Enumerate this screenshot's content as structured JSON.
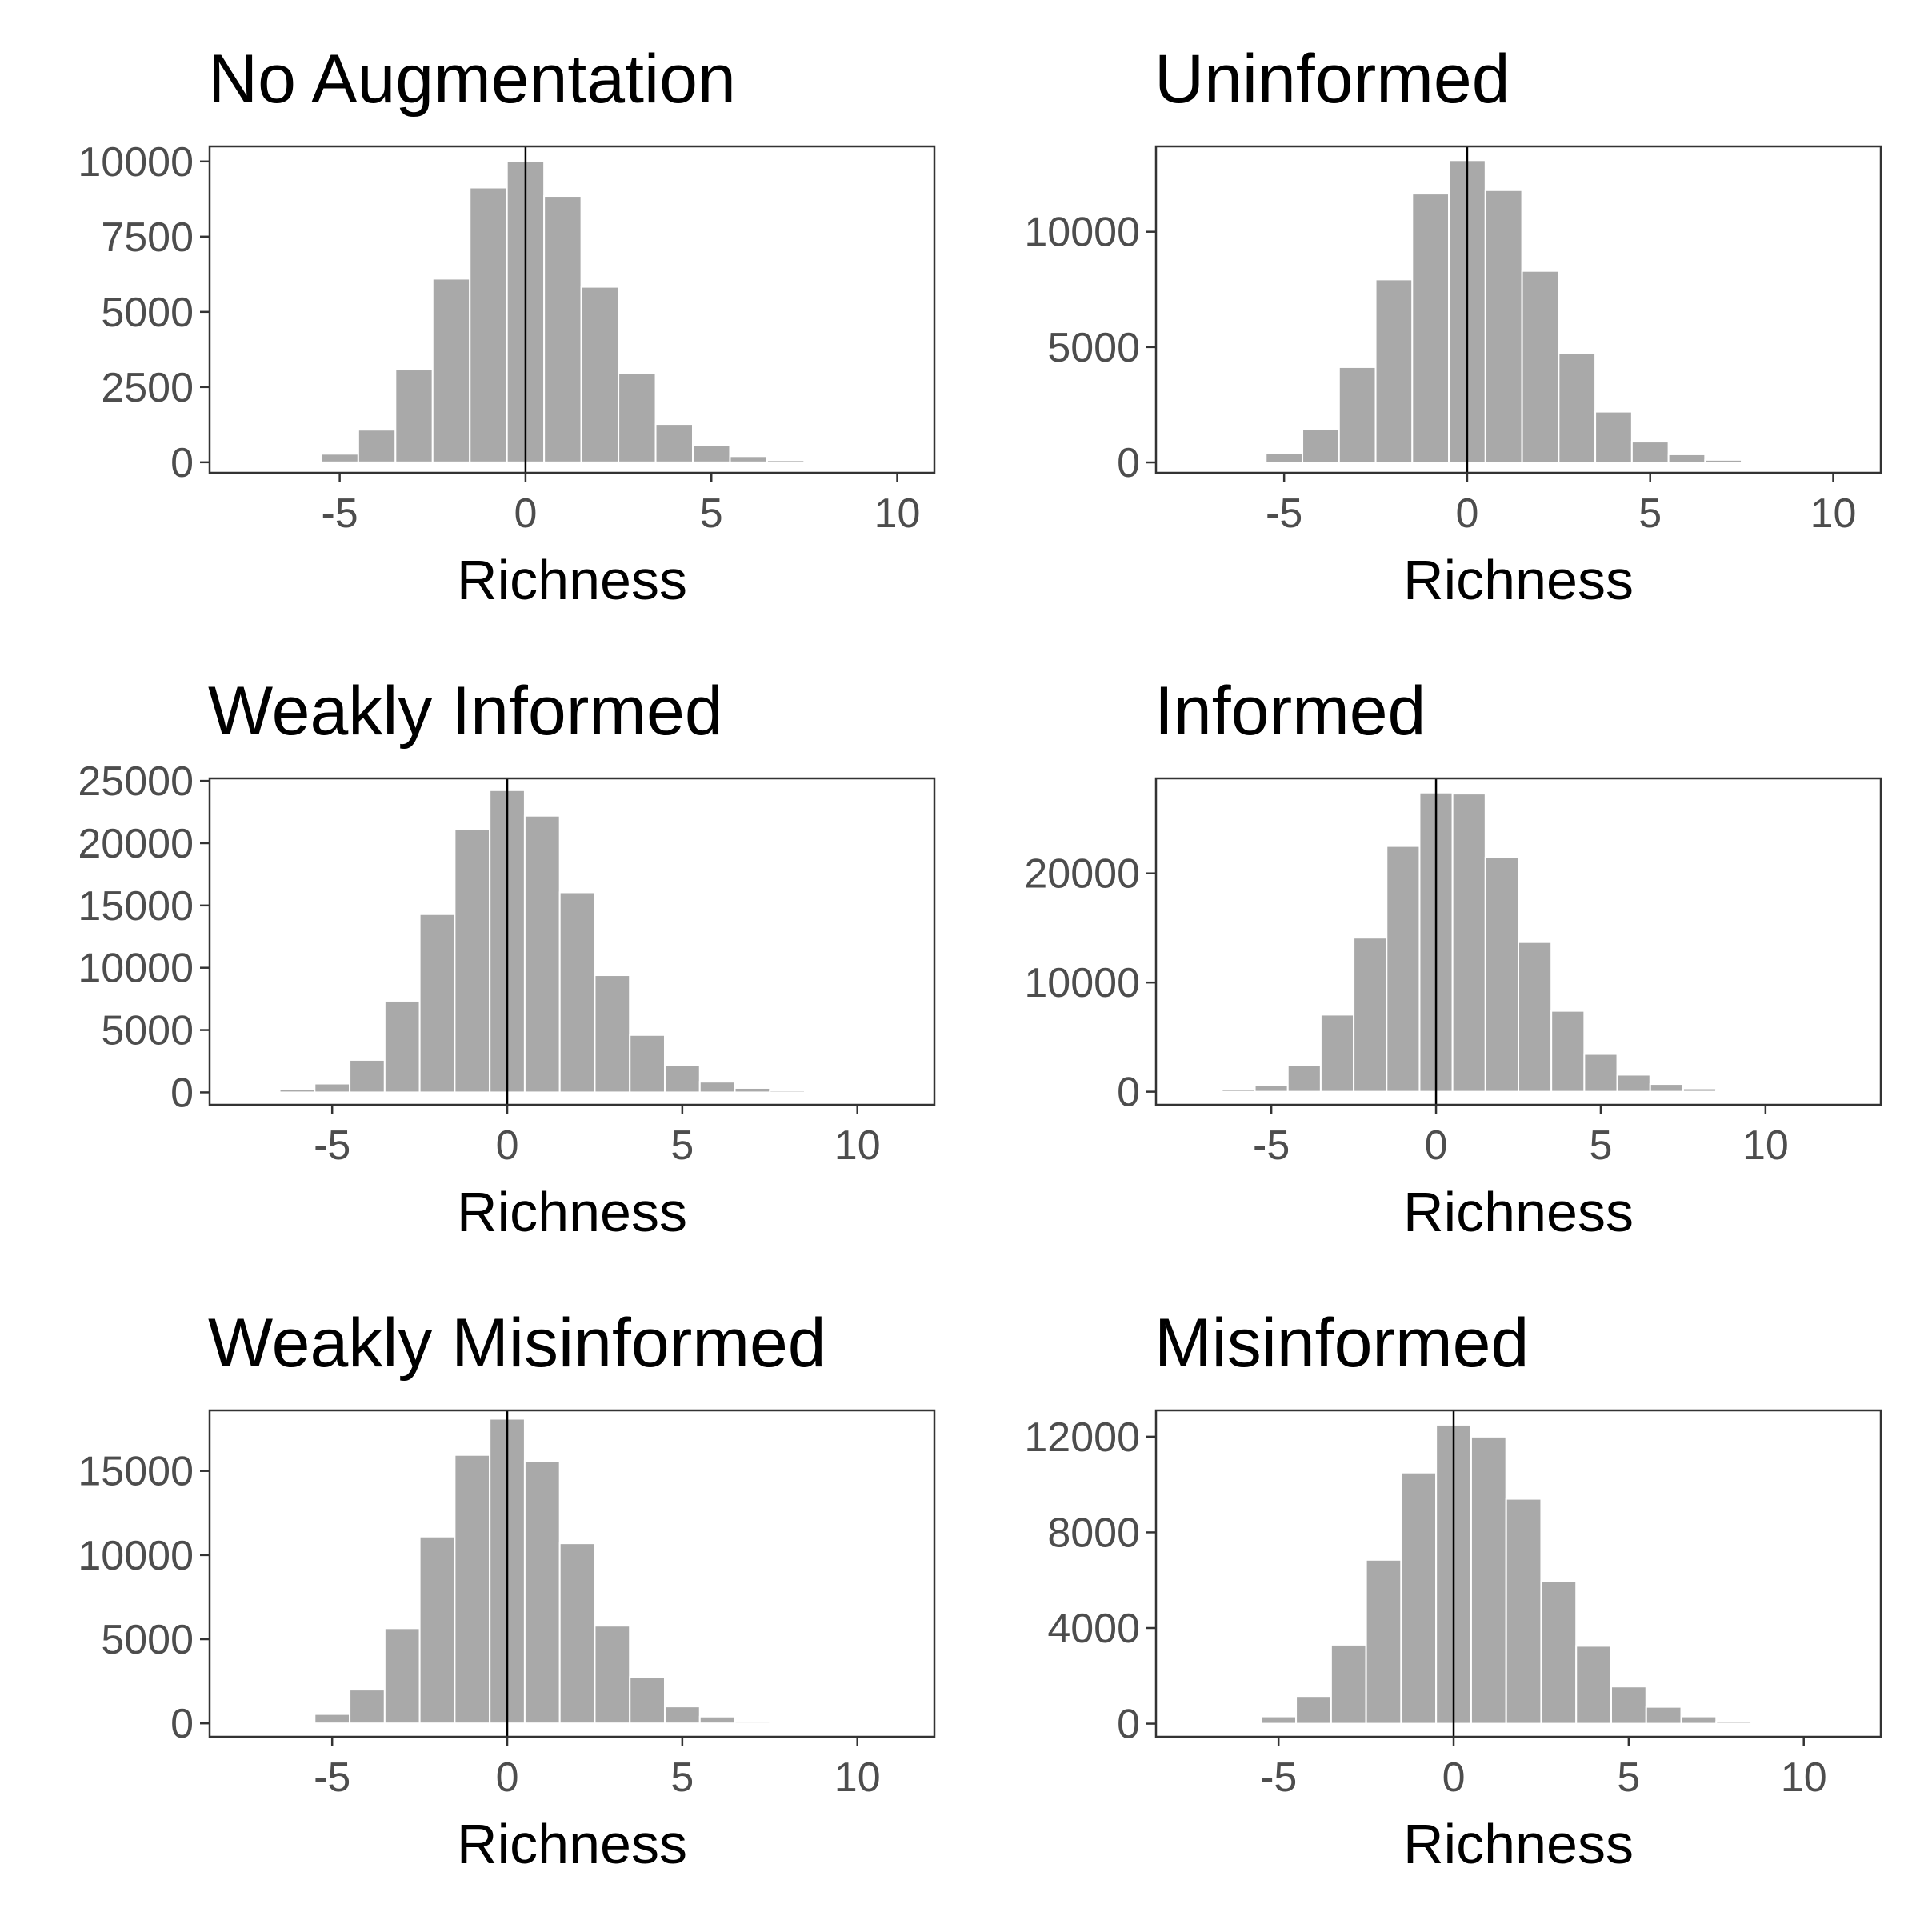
{
  "figure": {
    "background": "#ffffff",
    "bar_color": "#a9a9a9",
    "frame_color": "#333333",
    "zero_line_color": "#000000"
  },
  "chart_data": [
    {
      "type": "bar",
      "title": "No Augmentation",
      "xlabel": "Richness",
      "ylabel": "",
      "xlim": [
        -8.5,
        11
      ],
      "ylim": [
        -350,
        10500
      ],
      "xticks": [
        -5,
        0,
        5,
        10
      ],
      "yticks": [
        0,
        2500,
        5000,
        7500,
        10000
      ],
      "bin_width": 1,
      "grid": false,
      "zero_line": 0,
      "x": [
        -6,
        -5,
        -4,
        -3,
        -2,
        -1,
        0,
        1,
        2,
        3,
        4,
        5,
        6,
        7,
        8
      ],
      "values": [
        40,
        280,
        1080,
        3080,
        6100,
        9130,
        10000,
        8850,
        5830,
        2950,
        1270,
        560,
        200,
        70,
        20
      ]
    },
    {
      "type": "bar",
      "title": "Uninformed",
      "xlabel": "Richness",
      "ylabel": "",
      "xlim": [
        -8.5,
        11.3
      ],
      "ylim": [
        -450,
        13700
      ],
      "xticks": [
        -5,
        0,
        5,
        10
      ],
      "yticks": [
        0,
        5000,
        10000
      ],
      "bin_width": 1,
      "grid": false,
      "zero_line": 0,
      "x": [
        -6,
        -5,
        -4,
        -3,
        -2,
        -1,
        0,
        1,
        2,
        3,
        4,
        5,
        6,
        7,
        8
      ],
      "values": [
        60,
        400,
        1450,
        4130,
        7930,
        11650,
        13100,
        11800,
        8300,
        4750,
        2200,
        900,
        350,
        110,
        30
      ]
    },
    {
      "type": "bar",
      "title": "Weakly Informed",
      "xlabel": "Richness",
      "ylabel": "",
      "xlim": [
        -8.5,
        12.2
      ],
      "ylim": [
        -1000,
        25200
      ],
      "xticks": [
        -5,
        0,
        5,
        10
      ],
      "yticks": [
        0,
        5000,
        10000,
        15000,
        20000,
        25000
      ],
      "bin_width": 1,
      "grid": false,
      "zero_line": 0,
      "x": [
        -7,
        -6,
        -5,
        -4,
        -3,
        -2,
        -1,
        0,
        1,
        2,
        3,
        4,
        5,
        6,
        7,
        8,
        9,
        10
      ],
      "values": [
        60,
        230,
        700,
        2600,
        7350,
        14300,
        21150,
        24250,
        22200,
        16050,
        9400,
        4600,
        2150,
        850,
        350,
        150,
        60,
        20
      ]
    },
    {
      "type": "bar",
      "title": "Informed",
      "xlabel": "Richness",
      "ylabel": "",
      "xlim": [
        -8.5,
        13.5
      ],
      "ylim": [
        -1200,
        28700
      ],
      "xticks": [
        -5,
        0,
        5,
        10
      ],
      "yticks": [
        0,
        10000,
        20000
      ],
      "bin_width": 1,
      "grid": false,
      "zero_line": 0,
      "x": [
        -6,
        -5,
        -4,
        -3,
        -2,
        -1,
        0,
        1,
        2,
        3,
        4,
        5,
        6,
        7,
        8,
        9,
        10
      ],
      "values": [
        220,
        620,
        2400,
        7050,
        14100,
        22500,
        27400,
        27300,
        21450,
        13700,
        7400,
        3450,
        1550,
        700,
        300,
        120,
        50
      ]
    },
    {
      "type": "bar",
      "title": "Weakly Misinformed",
      "xlabel": "Richness",
      "ylabel": "",
      "xlim": [
        -8.5,
        12.2
      ],
      "ylim": [
        -800,
        18600
      ],
      "xticks": [
        -5,
        0,
        5,
        10
      ],
      "yticks": [
        0,
        5000,
        10000,
        15000
      ],
      "bin_width": 1,
      "grid": false,
      "zero_line": 0,
      "x": [
        -6,
        -5,
        -4,
        -3,
        -2,
        -1,
        0,
        1,
        2,
        3,
        4,
        5,
        6,
        7
      ],
      "values": [
        80,
        550,
        2000,
        5650,
        11100,
        15950,
        18100,
        15600,
        10700,
        5800,
        2750,
        1000,
        400,
        100
      ]
    },
    {
      "type": "bar",
      "title": "Misinformed",
      "xlabel": "Richness",
      "ylabel": "",
      "xlim": [
        -8.5,
        12.2
      ],
      "ylim": [
        -550,
        13100
      ],
      "xticks": [
        -5,
        0,
        5,
        10
      ],
      "yticks": [
        0,
        4000,
        8000,
        12000
      ],
      "bin_width": 1,
      "grid": false,
      "zero_line": 0,
      "x": [
        -5,
        -4,
        -3,
        -2,
        -1,
        0,
        1,
        2,
        3,
        4,
        5,
        6,
        7,
        8
      ],
      "values": [
        300,
        1150,
        3300,
        6850,
        10500,
        12500,
        12000,
        9400,
        5950,
        3250,
        1550,
        700,
        300,
        80
      ]
    }
  ]
}
